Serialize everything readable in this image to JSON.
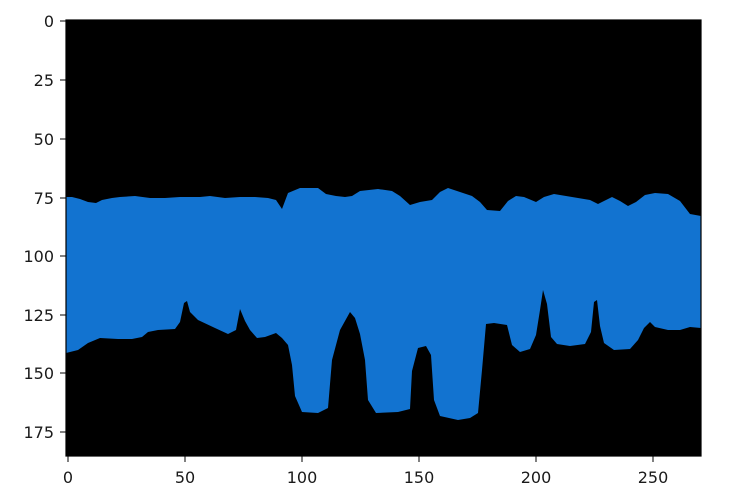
{
  "figure": {
    "kind": "image-plot",
    "background_color": "#000000",
    "mask_color": "#1273d0",
    "frame_color": "#000000",
    "x_ticks": [
      "0",
      "50",
      "100",
      "150",
      "200",
      "250"
    ],
    "y_ticks": [
      "0",
      "25",
      "50",
      "75",
      "100",
      "125",
      "150",
      "175"
    ],
    "x_range": [
      0,
      271
    ],
    "y_range": [
      186,
      0
    ]
  }
}
